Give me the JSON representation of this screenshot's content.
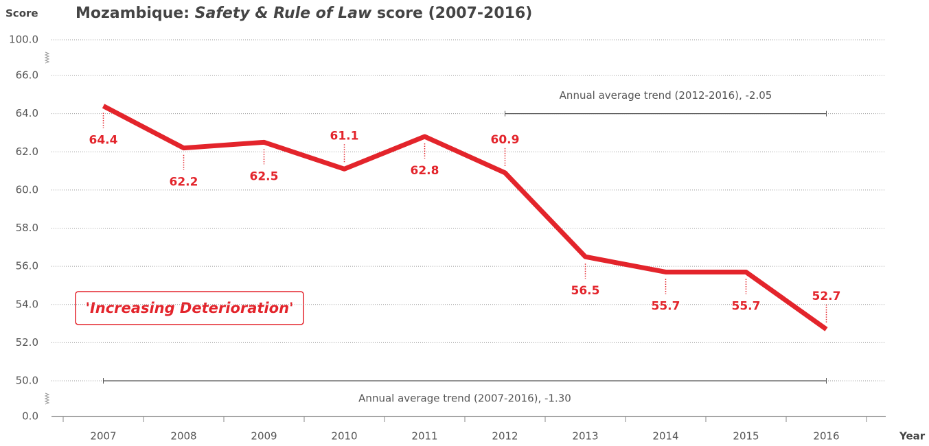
{
  "chart_data": {
    "type": "line",
    "title": [
      "Mozambique: ",
      "Safety & Rule of Law",
      " score (2007-2016)"
    ],
    "y_axis_label": "Score",
    "x_axis_label": "Year",
    "categories": [
      "2007",
      "2008",
      "2009",
      "2010",
      "2011",
      "2012",
      "2013",
      "2014",
      "2015",
      "2016"
    ],
    "series": [
      {
        "name": "Safety & Rule of Law",
        "color": "#e3242b",
        "values": [
          64.4,
          62.2,
          62.5,
          61.1,
          62.8,
          60.9,
          56.5,
          55.7,
          55.7,
          52.7
        ]
      }
    ],
    "ylim": [
      0,
      100
    ],
    "axis_breaks": [
      [
        0,
        50
      ],
      [
        66,
        100
      ]
    ],
    "yticks": [
      {
        "value": 100,
        "label": "100.0"
      },
      {
        "value": 66,
        "label": "66.0"
      },
      {
        "value": 64,
        "label": "64.0"
      },
      {
        "value": 62,
        "label": "62.0"
      },
      {
        "value": 60,
        "label": "60.0"
      },
      {
        "value": 58,
        "label": "58.0"
      },
      {
        "value": 56,
        "label": "56.0"
      },
      {
        "value": 54,
        "label": "54.0"
      },
      {
        "value": 52,
        "label": "52.0"
      },
      {
        "value": 50,
        "label": "50.0"
      },
      {
        "value": 0,
        "label": "0.0"
      }
    ],
    "grid": true,
    "annotations": [
      {
        "text": "Annual average trend (2012-2016), -2.05",
        "start": "2012",
        "end": "2016"
      },
      {
        "text": "Annual average trend (2007-2016), -1.30",
        "start": "2007",
        "end": "2016"
      }
    ],
    "callout": "'Increasing Deterioration'"
  }
}
